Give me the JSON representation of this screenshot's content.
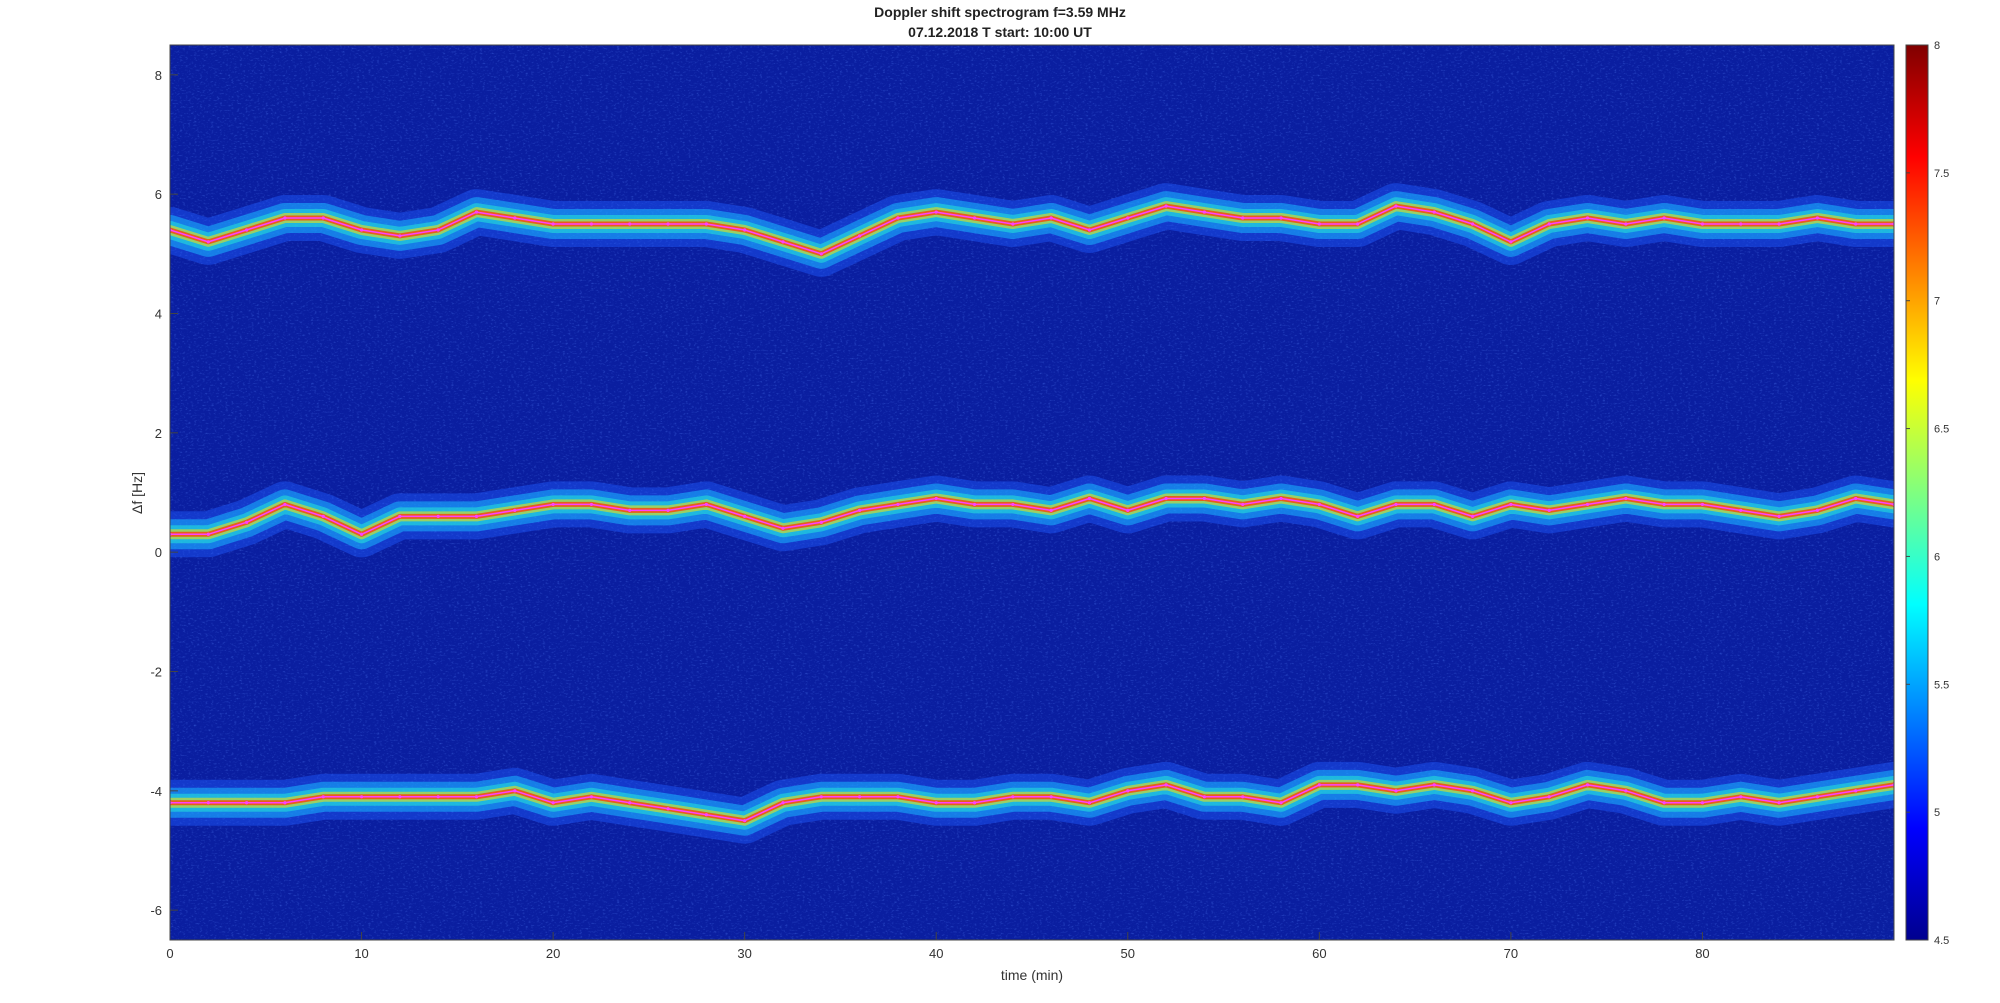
{
  "chart_data": {
    "type": "heatmap",
    "title": "Doppler shift spectrogram f=3.59 MHz",
    "subtitle": "07.12.2018   T start: 10:00 UT",
    "xlabel": "time (min)",
    "ylabel": "Δf [Hz]",
    "xlim": [
      0,
      90
    ],
    "ylim": [
      -6.5,
      8.5
    ],
    "xticks": [
      "0",
      "10",
      "20",
      "30",
      "40",
      "50",
      "60",
      "70",
      "80"
    ],
    "yticks": [
      "-6",
      "-4",
      "-2",
      "0",
      "2",
      "4",
      "6",
      "8"
    ],
    "colorbar": {
      "range": [
        4.5,
        8
      ],
      "ticks": [
        "4.5",
        "5",
        "5.5",
        "6",
        "6.5",
        "7",
        "7.5",
        "8"
      ],
      "colormap": "jet"
    },
    "background_color": "#0a1ea0",
    "trace_color": "#ff40ff",
    "series": [
      {
        "x": [
          0,
          2,
          4,
          6,
          8,
          10,
          12,
          14,
          16,
          18,
          20,
          22,
          24,
          26,
          28,
          30,
          32,
          34,
          36,
          38,
          40,
          42,
          44,
          46,
          48,
          50,
          52,
          54,
          56,
          58,
          60,
          62,
          64,
          66,
          68,
          70,
          72,
          74,
          76,
          78,
          80,
          82,
          84,
          86,
          88,
          90
        ],
        "y": [
          5.4,
          5.2,
          5.4,
          5.6,
          5.6,
          5.4,
          5.3,
          5.4,
          5.7,
          5.6,
          5.5,
          5.5,
          5.5,
          5.5,
          5.5,
          5.4,
          5.2,
          5.0,
          5.3,
          5.6,
          5.7,
          5.6,
          5.5,
          5.6,
          5.4,
          5.6,
          5.8,
          5.7,
          5.6,
          5.6,
          5.5,
          5.5,
          5.8,
          5.7,
          5.5,
          5.2,
          5.5,
          5.6,
          5.5,
          5.6,
          5.5,
          5.5,
          5.5,
          5.6,
          5.5,
          5.5
        ]
      },
      {
        "x": [
          0,
          2,
          4,
          6,
          8,
          10,
          12,
          14,
          16,
          18,
          20,
          22,
          24,
          26,
          28,
          30,
          32,
          34,
          36,
          38,
          40,
          42,
          44,
          46,
          48,
          50,
          52,
          54,
          56,
          58,
          60,
          62,
          64,
          66,
          68,
          70,
          72,
          74,
          76,
          78,
          80,
          82,
          84,
          86,
          88,
          90
        ],
        "y": [
          0.3,
          0.3,
          0.5,
          0.8,
          0.6,
          0.3,
          0.6,
          0.6,
          0.6,
          0.7,
          0.8,
          0.8,
          0.7,
          0.7,
          0.8,
          0.6,
          0.4,
          0.5,
          0.7,
          0.8,
          0.9,
          0.8,
          0.8,
          0.7,
          0.9,
          0.7,
          0.9,
          0.9,
          0.8,
          0.9,
          0.8,
          0.6,
          0.8,
          0.8,
          0.6,
          0.8,
          0.7,
          0.8,
          0.9,
          0.8,
          0.8,
          0.7,
          0.6,
          0.7,
          0.9,
          0.8
        ]
      },
      {
        "x": [
          0,
          2,
          4,
          6,
          8,
          10,
          12,
          14,
          16,
          18,
          20,
          22,
          24,
          26,
          28,
          30,
          32,
          34,
          36,
          38,
          40,
          42,
          44,
          46,
          48,
          50,
          52,
          54,
          56,
          58,
          60,
          62,
          64,
          66,
          68,
          70,
          72,
          74,
          76,
          78,
          80,
          82,
          84,
          86,
          88,
          90
        ],
        "y": [
          -4.2,
          -4.2,
          -4.2,
          -4.2,
          -4.1,
          -4.1,
          -4.1,
          -4.1,
          -4.1,
          -4.0,
          -4.2,
          -4.1,
          -4.2,
          -4.3,
          -4.4,
          -4.5,
          -4.2,
          -4.1,
          -4.1,
          -4.1,
          -4.2,
          -4.2,
          -4.1,
          -4.1,
          -4.2,
          -4.0,
          -3.9,
          -4.1,
          -4.1,
          -4.2,
          -3.9,
          -3.9,
          -4.0,
          -3.9,
          -4.0,
          -4.2,
          -4.1,
          -3.9,
          -4.0,
          -4.2,
          -4.2,
          -4.1,
          -4.2,
          -4.1,
          -4.0,
          -3.9
        ]
      }
    ]
  }
}
